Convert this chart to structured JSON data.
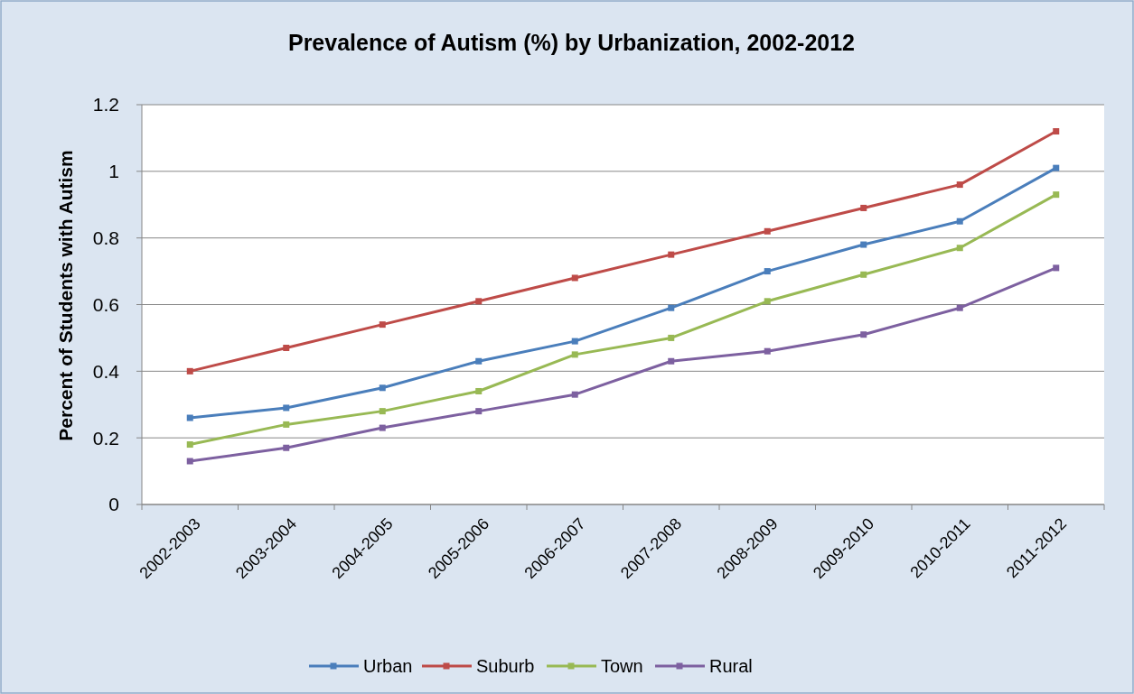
{
  "chart_data": {
    "type": "line",
    "title": "Prevalence of Autism (%) by Urbanization, 2002-2012",
    "ylabel": "Percent of Students with Autism",
    "categories": [
      "2002-2003",
      "2003-2004",
      "2004-2005",
      "2005-2006",
      "2006-2007",
      "2007-2008",
      "2008-2009",
      "2009-2010",
      "2010-2011",
      "2011-2012"
    ],
    "series": [
      {
        "name": "Urban",
        "color": "#4a7ebb",
        "values": [
          0.26,
          0.29,
          0.35,
          0.43,
          0.49,
          0.59,
          0.7,
          0.78,
          0.85,
          1.01
        ]
      },
      {
        "name": "Suburb",
        "color": "#be4b48",
        "values": [
          0.4,
          0.47,
          0.54,
          0.61,
          0.68,
          0.75,
          0.82,
          0.89,
          0.96,
          1.12
        ]
      },
      {
        "name": "Town",
        "color": "#98b954",
        "values": [
          0.18,
          0.24,
          0.28,
          0.34,
          0.45,
          0.5,
          0.61,
          0.69,
          0.77,
          0.93
        ]
      },
      {
        "name": "Rural",
        "color": "#7d60a0",
        "values": [
          0.13,
          0.17,
          0.23,
          0.28,
          0.33,
          0.43,
          0.46,
          0.51,
          0.59,
          0.71
        ]
      }
    ],
    "ylim": [
      0,
      1.2
    ],
    "yticks": [
      0,
      0.2,
      0.4,
      0.6,
      0.8,
      1,
      1.2
    ],
    "grid": "y",
    "legend": "bottom",
    "marker": "square",
    "line_style": "solid"
  }
}
